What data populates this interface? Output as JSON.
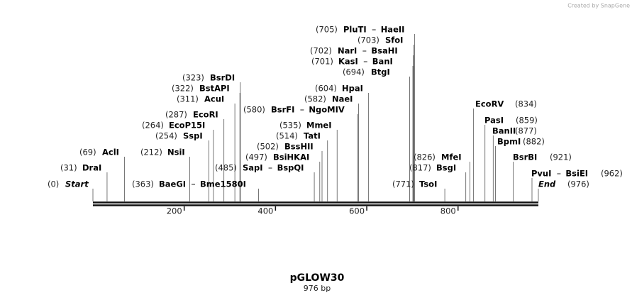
{
  "header": {
    "logo": "Created by SnapGene"
  },
  "map": {
    "title": "pGLOW30",
    "length": {
      "value": 976,
      "label": "976 bp"
    },
    "ticks": [
      200,
      400,
      600,
      800
    ],
    "sites": [
      {
        "position": {
          "value": 0,
          "label": "(0)"
        },
        "names": [
          "Start"
        ]
      },
      {
        "position": {
          "value": 31,
          "label": "(31)"
        },
        "names": [
          "DraI"
        ]
      },
      {
        "position": {
          "value": 69,
          "label": "(69)"
        },
        "names": [
          "AclI"
        ]
      },
      {
        "position": {
          "value": 212,
          "label": "(212)"
        },
        "names": [
          "NsiI"
        ]
      },
      {
        "position": {
          "value": 254,
          "label": "(254)"
        },
        "names": [
          "SspI"
        ]
      },
      {
        "position": {
          "value": 264,
          "label": "(264)"
        },
        "names": [
          "EcoP15I"
        ]
      },
      {
        "position": {
          "value": 287,
          "label": "(287)"
        },
        "names": [
          "EcoRI"
        ]
      },
      {
        "position": {
          "value": 311,
          "label": "(311)"
        },
        "names": [
          "AcuI"
        ]
      },
      {
        "position": {
          "value": 322,
          "label": "(322)"
        },
        "names": [
          "BstAPI"
        ]
      },
      {
        "position": {
          "value": 323,
          "label": "(323)"
        },
        "names": [
          "BsrDI"
        ]
      },
      {
        "position": {
          "value": 363,
          "label": "(363)"
        },
        "names": [
          "BaeGI",
          "Bme1580I"
        ]
      },
      {
        "position": {
          "value": 485,
          "label": "(485)"
        },
        "names": [
          "SapI",
          "BspQI"
        ]
      },
      {
        "position": {
          "value": 497,
          "label": "(497)"
        },
        "names": [
          "BsiHKAI"
        ]
      },
      {
        "position": {
          "value": 502,
          "label": "(502)"
        },
        "names": [
          "BssHII"
        ]
      },
      {
        "position": {
          "value": 514,
          "label": "(514)"
        },
        "names": [
          "TatI"
        ]
      },
      {
        "position": {
          "value": 535,
          "label": "(535)"
        },
        "names": [
          "MmeI"
        ]
      },
      {
        "position": {
          "value": 580,
          "label": "(580)"
        },
        "names": [
          "BsrFI",
          "NgoMIV"
        ]
      },
      {
        "position": {
          "value": 582,
          "label": "(582)"
        },
        "names": [
          "NaeI"
        ]
      },
      {
        "position": {
          "value": 604,
          "label": "(604)"
        },
        "names": [
          "HpaI"
        ]
      },
      {
        "position": {
          "value": 694,
          "label": "(694)"
        },
        "names": [
          "BtgI"
        ]
      },
      {
        "position": {
          "value": 701,
          "label": "(701)"
        },
        "names": [
          "KasI",
          "BanI"
        ]
      },
      {
        "position": {
          "value": 702,
          "label": "(702)"
        },
        "names": [
          "NarI",
          "BsaHI"
        ]
      },
      {
        "position": {
          "value": 703,
          "label": "(703)"
        },
        "names": [
          "SfoI"
        ]
      },
      {
        "position": {
          "value": 705,
          "label": "(705)"
        },
        "names": [
          "PluTI",
          "HaeII"
        ]
      },
      {
        "position": {
          "value": 771,
          "label": "(771)"
        },
        "names": [
          "TsoI"
        ]
      },
      {
        "position": {
          "value": 817,
          "label": "(817)"
        },
        "names": [
          "BsgI"
        ]
      },
      {
        "position": {
          "value": 826,
          "label": "(826)"
        },
        "names": [
          "MfeI"
        ]
      },
      {
        "position": {
          "value": 834,
          "label": "(834)"
        },
        "names": [
          "EcoRV"
        ]
      },
      {
        "position": {
          "value": 859,
          "label": "(859)"
        },
        "names": [
          "PasI"
        ]
      },
      {
        "position": {
          "value": 877,
          "label": "(877)"
        },
        "names": [
          "BanII"
        ]
      },
      {
        "position": {
          "value": 882,
          "label": "(882)"
        },
        "names": [
          "BpmI"
        ]
      },
      {
        "position": {
          "value": 921,
          "label": "(921)"
        },
        "names": [
          "BsrBI"
        ]
      },
      {
        "position": {
          "value": 962,
          "label": "(962)"
        },
        "names": [
          "PvuI",
          "BsiEI"
        ]
      },
      {
        "position": {
          "value": 976,
          "label": "(976)"
        },
        "names": [
          "End"
        ]
      }
    ]
  }
}
